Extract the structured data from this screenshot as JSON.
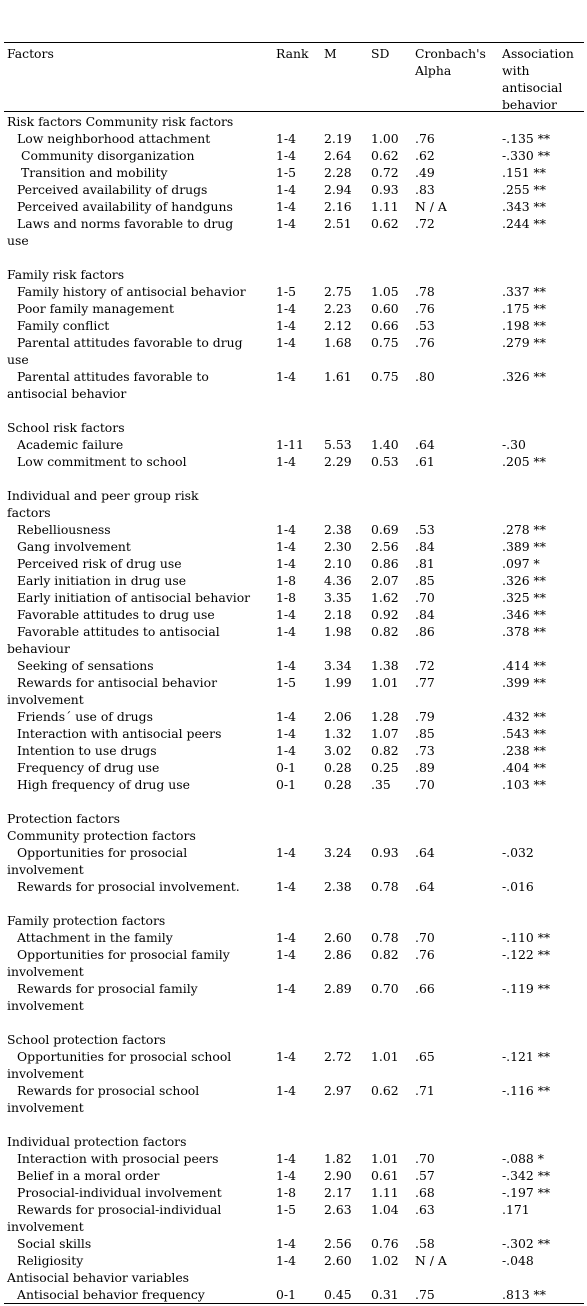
{
  "headers": {
    "factor": "Factors",
    "rank": "Rank",
    "m": "M",
    "sd": "SD",
    "alpha_line1": "Cronbach's",
    "alpha_line2": "Alpha",
    "assoc_line1": "Association",
    "assoc_line2": " with",
    "assoc_line3": "antisocial",
    "assoc_line4": "behavior"
  },
  "rows": [
    {
      "kind": "heading",
      "factor": "Risk factors Community risk factors"
    },
    {
      "kind": "data",
      "indent": 10,
      "factor": "Low neighborhood attachment",
      "rank": "1-4",
      "m": "2.19",
      "sd": "1.00",
      "alpha": ".76",
      "assoc": "-.135 **"
    },
    {
      "kind": "data",
      "indent": 14,
      "factor": "Community disorganization",
      "rank": "1-4",
      "m": "2.64",
      "sd": "0.62",
      "alpha": ".62",
      "assoc": "-.330 **"
    },
    {
      "kind": "data",
      "indent": 14,
      "factor": "Transition and mobility",
      "rank": "1-5",
      "m": "2.28",
      "sd": "0.72",
      "alpha": ".49",
      "assoc": ".151 **"
    },
    {
      "kind": "data",
      "indent": 10,
      "factor": "Perceived availability of drugs",
      "rank": "1-4",
      "m": "2.94",
      "sd": "0.93",
      "alpha": ".83",
      "assoc": ".255 **"
    },
    {
      "kind": "data",
      "indent": 10,
      "factor": "Perceived availability of handguns",
      "rank": "1-4",
      "m": "2.16",
      "sd": "1.11",
      "alpha": "N / A",
      "assoc": ".343 **"
    },
    {
      "kind": "data",
      "indent": 10,
      "factor": "Laws and norms favorable to drug",
      "factor2": "use",
      "rank": "1-4",
      "m": "2.51",
      "sd": "0.62",
      "alpha": ".72",
      "assoc": ".244 **"
    },
    {
      "kind": "gap"
    },
    {
      "kind": "heading",
      "factor": "Family risk factors"
    },
    {
      "kind": "data",
      "indent": 10,
      "factor": "Family history of antisocial behavior",
      "rank": "1-5",
      "m": "2.75",
      "sd": "1.05",
      "alpha": ".78",
      "assoc": ".337 **"
    },
    {
      "kind": "data",
      "indent": 10,
      "factor": "Poor family management",
      "rank": "1-4",
      "m": "2.23",
      "sd": "0.60",
      "alpha": ".76",
      "assoc": ".175 **"
    },
    {
      "kind": "data",
      "indent": 10,
      "factor": "Family conflict",
      "rank": "1-4",
      "m": "2.12",
      "sd": "0.66",
      "alpha": ".53",
      "assoc": ".198 **"
    },
    {
      "kind": "data",
      "indent": 10,
      "factor": "Parental attitudes favorable to drug",
      "factor2": "use",
      "rank": "1-4",
      "m": "1.68",
      "sd": "0.75",
      "alpha": ".76",
      "assoc": ".279 **"
    },
    {
      "kind": "data",
      "indent": 10,
      "factor": "Parental attitudes favorable to",
      "factor2": "antisocial behavior",
      "rank": "1-4",
      "m": "1.61",
      "sd": "0.75",
      "alpha": ".80",
      "assoc": ".326 **"
    },
    {
      "kind": "gap"
    },
    {
      "kind": "heading",
      "factor": "School risk factors"
    },
    {
      "kind": "data",
      "indent": 10,
      "factor": "Academic failure",
      "rank": "1-11",
      "m": "5.53",
      "sd": "1.40",
      "alpha": ".64",
      "assoc": "-.30"
    },
    {
      "kind": "data",
      "indent": 10,
      "factor": "Low commitment to school",
      "rank": "1-4",
      "m": "2.29",
      "sd": "0.53",
      "alpha": ".61",
      "assoc": ".205 **"
    },
    {
      "kind": "gap"
    },
    {
      "kind": "heading",
      "factor": "Individual and peer group risk",
      "factor2": "factors"
    },
    {
      "kind": "data",
      "indent": 10,
      "factor": "Rebelliousness",
      "rank": "1-4",
      "m": "2.38",
      "sd": "0.69",
      "alpha": ".53",
      "assoc": ".278 **"
    },
    {
      "kind": "data",
      "indent": 10,
      "factor": "Gang involvement",
      "rank": "1-4",
      "m": "2.30",
      "sd": "2.56",
      "alpha": ".84",
      "assoc": ".389 **"
    },
    {
      "kind": "data",
      "indent": 10,
      "factor": "Perceived risk of drug use",
      "rank": "1-4",
      "m": "2.10",
      "sd": "0.86",
      "alpha": ".81",
      "assoc": ".097 *"
    },
    {
      "kind": "data",
      "indent": 10,
      "factor": "Early initiation in drug use",
      "rank": "1-8",
      "m": "4.36",
      "sd": "2.07",
      "alpha": ".85",
      "assoc": ".326 **"
    },
    {
      "kind": "data",
      "indent": 10,
      "factor": "Early initiation of antisocial behavior",
      "rank": "1-8",
      "m": "3.35",
      "sd": "1.62",
      "alpha": ".70",
      "assoc": ".325 **"
    },
    {
      "kind": "data",
      "indent": 10,
      "factor": "Favorable attitudes to drug use",
      "rank": "1-4",
      "m": "2.18",
      "sd": "0.92",
      "alpha": ".84",
      "assoc": ".346 **"
    },
    {
      "kind": "data",
      "indent": 10,
      "factor": "Favorable attitudes to antisocial",
      "factor2": "behaviour",
      "rank": "1-4",
      "m": "1.98",
      "sd": "0.82",
      "alpha": ".86",
      "assoc": ".378 **"
    },
    {
      "kind": "data",
      "indent": 10,
      "factor": "Seeking of sensations",
      "rank": "1-4",
      "m": "3.34",
      "sd": "1.38",
      "alpha": ".72",
      "assoc": ".414 **"
    },
    {
      "kind": "data",
      "indent": 10,
      "factor": "Rewards for antisocial behavior",
      "factor2": "involvement",
      "rank": "1-5",
      "m": "1.99",
      "sd": "1.01",
      "alpha": ".77",
      "assoc": ".399 **"
    },
    {
      "kind": "data",
      "indent": 10,
      "factor": "Friends´ use of drugs",
      "rank": "1-4",
      "m": "2.06",
      "sd": "1.28",
      "alpha": ".79",
      "assoc": ".432 **"
    },
    {
      "kind": "data",
      "indent": 10,
      "factor": "Interaction with antisocial peers",
      "rank": "1-4",
      "m": "1.32",
      "sd": "1.07",
      "alpha": ".85",
      "assoc": ".543 **"
    },
    {
      "kind": "data",
      "indent": 10,
      "factor": "Intention to use drugs",
      "rank": "1-4",
      "m": "3.02",
      "sd": "0.82",
      "alpha": ".73",
      "assoc": ".238 **"
    },
    {
      "kind": "data",
      "indent": 10,
      "factor": "Frequency of drug use",
      "rank": "0-1",
      "m": "0.28",
      "sd": "0.25",
      "alpha": ".89",
      "assoc": ".404 **"
    },
    {
      "kind": "data",
      "indent": 10,
      "factor": "High frequency of drug use",
      "rank": "0-1",
      "m": "0.28",
      "sd": ".35",
      "alpha": ".70",
      "assoc": ".103 **"
    },
    {
      "kind": "gap"
    },
    {
      "kind": "heading",
      "factor": "Protection factors"
    },
    {
      "kind": "heading",
      "factor": "Community protection factors"
    },
    {
      "kind": "data",
      "indent": 10,
      "factor": "Opportunities for prosocial",
      "factor2": "involvement",
      "rank": "1-4",
      "m": "3.24",
      "sd": "0.93",
      "alpha": ".64",
      "assoc": "-.032"
    },
    {
      "kind": "data",
      "indent": 10,
      "factor": "Rewards for prosocial involvement.",
      "rank": "1-4",
      "m": "2.38",
      "sd": "0.78",
      "alpha": ".64",
      "assoc": "-.016"
    },
    {
      "kind": "gap"
    },
    {
      "kind": "heading",
      "factor": "Family protection factors"
    },
    {
      "kind": "data",
      "indent": 10,
      "factor": "Attachment in the family",
      "rank": "1-4",
      "m": "2.60",
      "sd": "0.78",
      "alpha": ".70",
      "assoc": "-.110 **"
    },
    {
      "kind": "data",
      "indent": 10,
      "factor": "Opportunities for prosocial family",
      "factor2": "involvement",
      "rank": "1-4",
      "m": "2.86",
      "sd": "0.82",
      "alpha": ".76",
      "assoc": "-.122 **"
    },
    {
      "kind": "data",
      "indent": 10,
      "factor": "Rewards for prosocial family",
      "factor2": "involvement",
      "rank": "1-4",
      "m": "2.89",
      "sd": "0.70",
      "alpha": ".66",
      "assoc": "-.119 **"
    },
    {
      "kind": "gap"
    },
    {
      "kind": "heading",
      "factor": "School protection factors"
    },
    {
      "kind": "data",
      "indent": 10,
      "factor": "Opportunities for prosocial school",
      "factor2": "involvement",
      "rank": "1-4",
      "m": "2.72",
      "sd": "1.01",
      "alpha": ".65",
      "assoc": "-.121 **"
    },
    {
      "kind": "data",
      "indent": 10,
      "factor": "Rewards for prosocial school",
      "factor2": "involvement",
      "rank": "1-4",
      "m": "2.97",
      "sd": "0.62",
      "alpha": ".71",
      "assoc": "-.116 **"
    },
    {
      "kind": "gap"
    },
    {
      "kind": "heading",
      "factor": "Individual protection factors"
    },
    {
      "kind": "data",
      "indent": 10,
      "factor": "Interaction with prosocial peers",
      "rank": "1-4",
      "m": "1.82",
      "sd": "1.01",
      "alpha": ".70",
      "assoc": "-.088 *"
    },
    {
      "kind": "data",
      "indent": 10,
      "factor": "Belief in a moral order",
      "rank": "1-4",
      "m": "2.90",
      "sd": "0.61",
      "alpha": ".57",
      "assoc": "-.342 **"
    },
    {
      "kind": "data",
      "indent": 10,
      "factor": "Prosocial-individual involvement",
      "rank": "1-8",
      "m": "2.17",
      "sd": "1.11",
      "alpha": ".68",
      "assoc": "-.197 **"
    },
    {
      "kind": "data",
      "indent": 10,
      "factor": "Rewards for prosocial-individual",
      "factor2": "involvement",
      "rank": "1-5",
      "m": "2.63",
      "sd": "1.04",
      "alpha": ".63",
      "assoc": ".171"
    },
    {
      "kind": "data",
      "indent": 10,
      "factor": "Social skills",
      "rank": "1-4",
      "m": "2.56",
      "sd": "0.76",
      "alpha": ".58",
      "assoc": "-.302 **"
    },
    {
      "kind": "data",
      "indent": 10,
      "factor": "Religiosity",
      "rank": "1-4",
      "m": "2.60",
      "sd": "1.02",
      "alpha": "N / A",
      "assoc": "-.048"
    },
    {
      "kind": "heading",
      "factor": "Antisocial behavior variables"
    },
    {
      "kind": "data",
      "indent": 10,
      "factor": "Antisocial behavior frequency",
      "rank": "0-1",
      "m": "0.45",
      "sd": "0.31",
      "alpha": ".75",
      "assoc": ".813 **"
    }
  ]
}
